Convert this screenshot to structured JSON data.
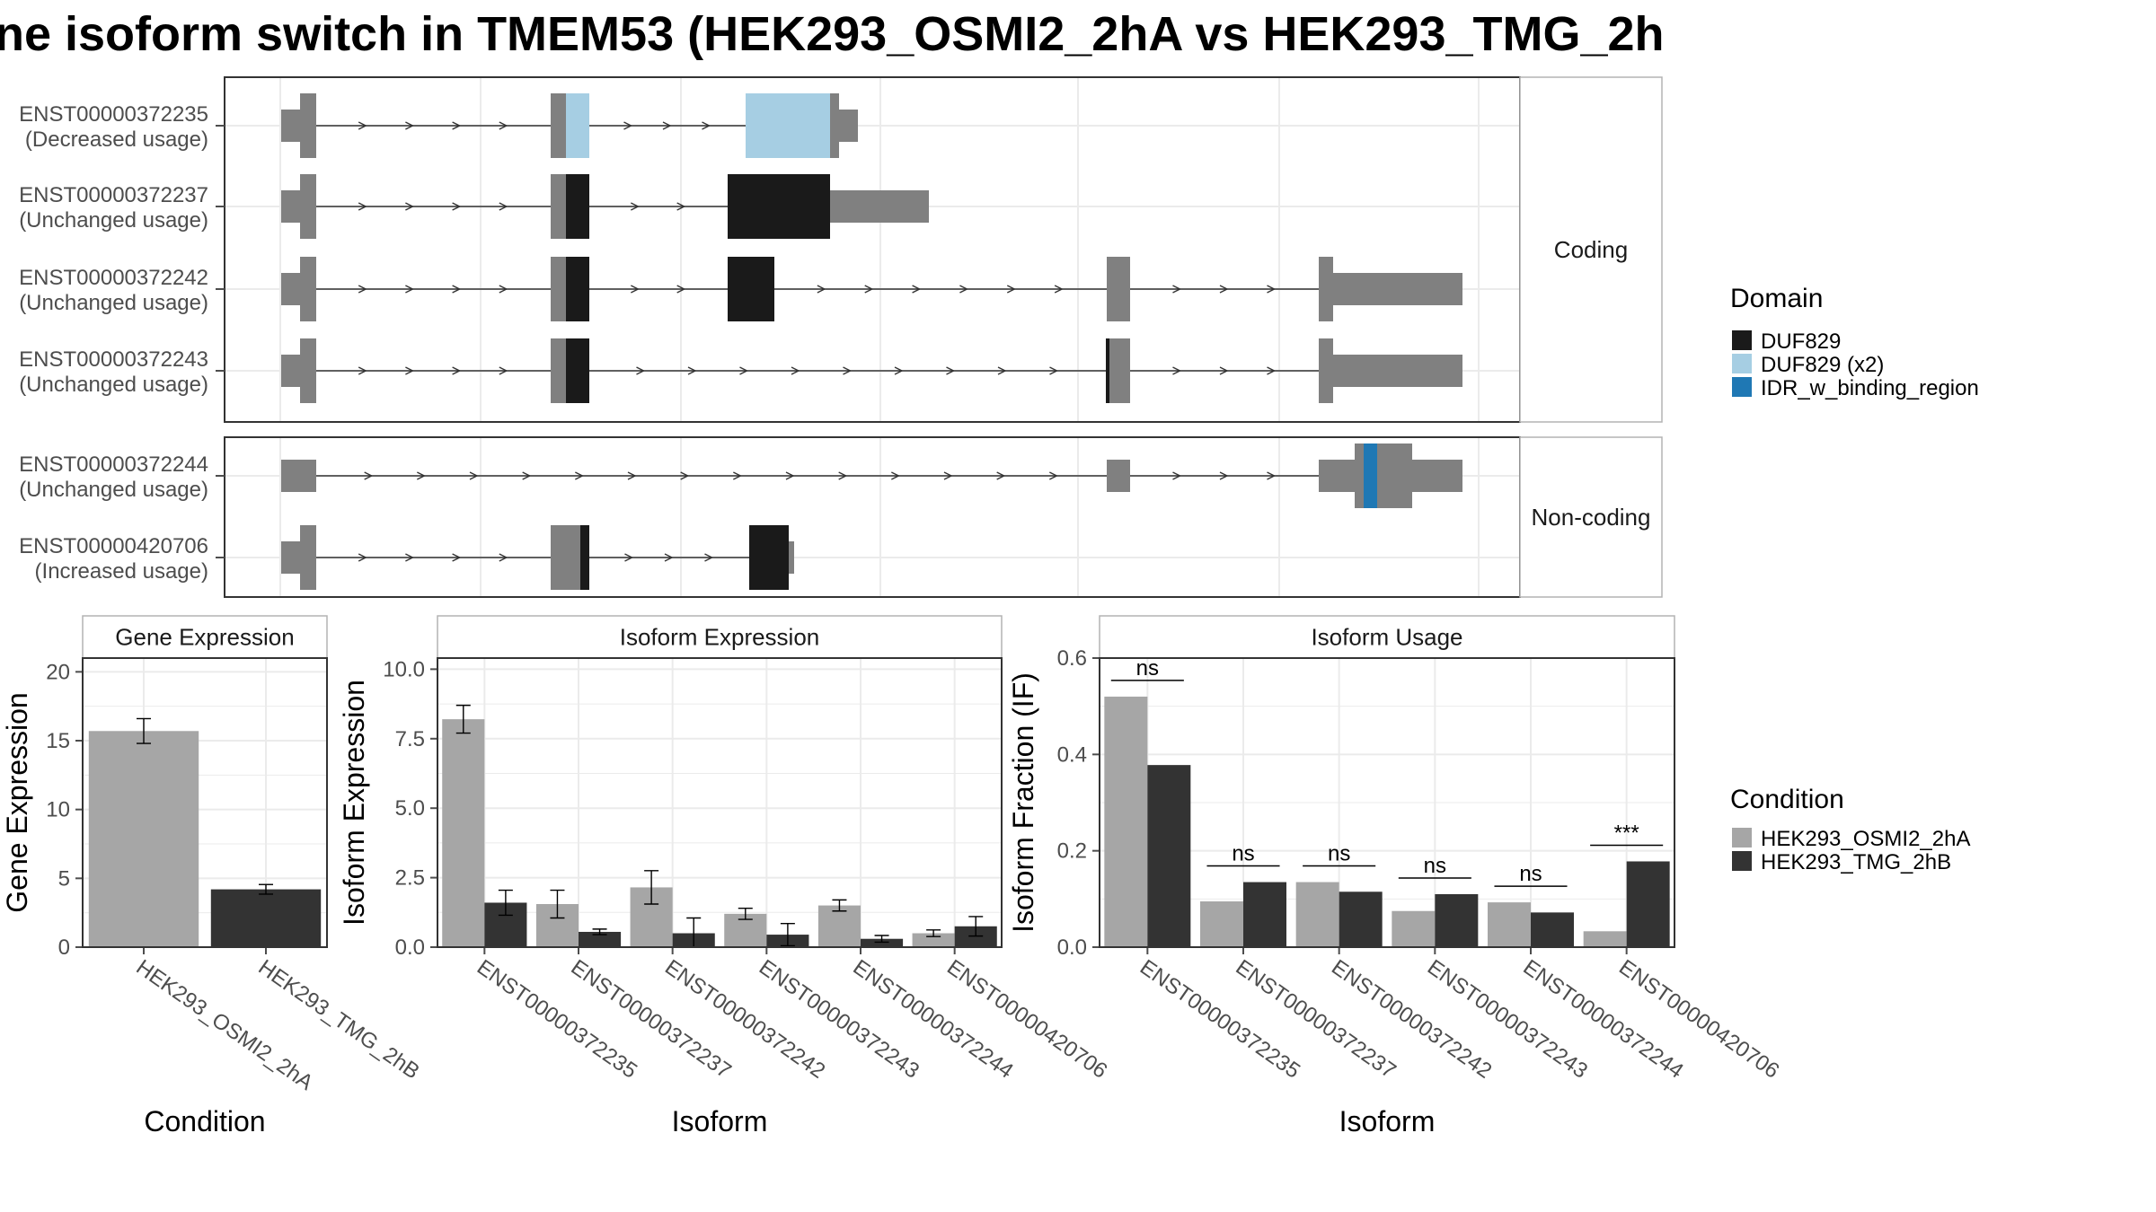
{
  "title": "ne isoform switch in TMEM53 (HEK293_OSMI2_2hA vs HEK293_TMG_2h",
  "chart_data": [
    {
      "type": "gene-structure",
      "panels": [
        {
          "label": "Coding",
          "isoforms": [
            {
              "id": "ENST00000372235",
              "usage": "(Decreased usage)"
            },
            {
              "id": "ENST00000372237",
              "usage": "(Unchanged usage)"
            },
            {
              "id": "ENST00000372242",
              "usage": "(Unchanged usage)"
            },
            {
              "id": "ENST00000372243",
              "usage": "(Unchanged usage)"
            }
          ]
        },
        {
          "label": "Non-coding",
          "isoforms": [
            {
              "id": "ENST00000372244",
              "usage": "(Unchanged usage)"
            },
            {
              "id": "ENST00000420706",
              "usage": "(Increased usage)"
            }
          ]
        }
      ],
      "legend": {
        "title": "Domain",
        "items": [
          {
            "name": "DUF829",
            "color": "#1a1a1a"
          },
          {
            "name": "DUF829 (x2)",
            "color": "#a6cee3"
          },
          {
            "name": "IDR_w_binding_region",
            "color": "#1f78b4"
          }
        ]
      },
      "colors": {
        "utr": "#808080",
        "intron": "#333333"
      }
    },
    {
      "type": "bar",
      "title": "Gene Expression",
      "xlabel": "Condition",
      "ylabel": "Gene Expression",
      "ylim": [
        0,
        21
      ],
      "yticks": [
        0,
        5,
        10,
        15,
        20
      ],
      "categories": [
        "HEK293_OSMI2_2hA",
        "HEK293_TMG_2hB"
      ],
      "values": [
        15.7,
        4.2
      ],
      "errors": [
        0.9,
        0.35
      ],
      "colors": [
        "#a6a6a6",
        "#333333"
      ],
      "grid": true
    },
    {
      "type": "bar",
      "title": "Isoform Expression",
      "xlabel": "Isoform",
      "ylabel": "Isoform Expression",
      "ylim": [
        0,
        10.4
      ],
      "yticks": [
        "0.0",
        "2.5",
        "5.0",
        "7.5",
        "10.0"
      ],
      "categories": [
        "ENST00000372235",
        "ENST00000372237",
        "ENST00000372242",
        "ENST00000372243",
        "ENST00000372244",
        "ENST00000420706"
      ],
      "series": [
        {
          "name": "HEK293_OSMI2_2hA",
          "color": "#a6a6a6",
          "values": [
            8.2,
            1.55,
            2.15,
            1.2,
            1.5,
            0.5
          ],
          "errors": [
            0.5,
            0.5,
            0.6,
            0.2,
            0.2,
            0.12
          ]
        },
        {
          "name": "HEK293_TMG_2hB",
          "color": "#333333",
          "values": [
            1.6,
            0.55,
            0.5,
            0.45,
            0.3,
            0.75
          ],
          "errors": [
            0.45,
            0.1,
            0.55,
            0.4,
            0.12,
            0.35
          ]
        }
      ],
      "grid": true
    },
    {
      "type": "bar",
      "title": "Isoform Usage",
      "xlabel": "Isoform",
      "ylabel": "Isoform Fraction (IF)",
      "ylim": [
        0,
        0.6
      ],
      "yticks": [
        "0.0",
        "0.2",
        "0.4",
        "0.6"
      ],
      "categories": [
        "ENST00000372235",
        "ENST00000372237",
        "ENST00000372242",
        "ENST00000372243",
        "ENST00000372244",
        "ENST00000420706"
      ],
      "series": [
        {
          "name": "HEK293_OSMI2_2hA",
          "color": "#a6a6a6",
          "values": [
            0.52,
            0.095,
            0.135,
            0.075,
            0.093,
            0.033
          ]
        },
        {
          "name": "HEK293_TMG_2hB",
          "color": "#333333",
          "values": [
            0.378,
            0.135,
            0.115,
            0.11,
            0.072,
            0.178
          ]
        }
      ],
      "annotations": [
        "ns",
        "ns",
        "ns",
        "ns",
        "ns",
        "***"
      ],
      "grid": true
    }
  ],
  "condition_legend": {
    "title": "Condition",
    "items": [
      {
        "name": "HEK293_OSMI2_2hA",
        "color": "#a6a6a6"
      },
      {
        "name": "HEK293_TMG_2hB",
        "color": "#333333"
      }
    ]
  }
}
